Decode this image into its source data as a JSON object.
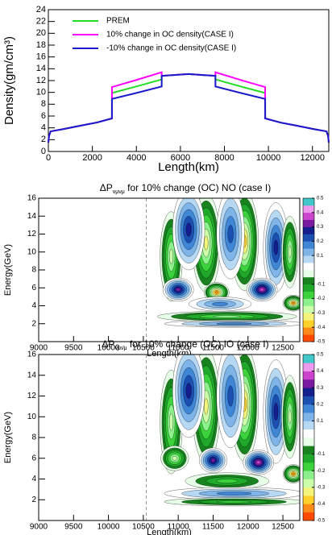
{
  "chart_data": [
    {
      "type": "line",
      "xlabel": "Length(km)",
      "ylabel": "Density(gm/cm³)",
      "x": [
        0,
        30,
        100,
        700,
        1500,
        2200,
        2890,
        2891,
        4000,
        5150,
        5151,
        6371,
        7591,
        7592,
        8742,
        9851,
        9852,
        10542,
        11242,
        12042,
        12642,
        12712,
        12742
      ],
      "series": [
        {
          "name": "PREM",
          "color": "#22dd22",
          "values": [
            1.5,
            2.6,
            3.4,
            3.8,
            4.4,
            4.9,
            5.6,
            9.9,
            11.0,
            12.2,
            12.8,
            13.1,
            12.8,
            12.2,
            11.0,
            9.9,
            5.6,
            4.9,
            4.4,
            3.8,
            3.4,
            2.6,
            1.5
          ]
        },
        {
          "name": "10% change in OC density(CASE I)",
          "color": "#ff00ff",
          "values": [
            1.5,
            2.6,
            3.4,
            3.8,
            4.4,
            4.9,
            5.6,
            10.9,
            12.1,
            13.4,
            12.8,
            13.1,
            12.8,
            13.4,
            12.1,
            10.9,
            5.6,
            4.9,
            4.4,
            3.8,
            3.4,
            2.6,
            1.5
          ]
        },
        {
          "name": "-10% change in OC density(CASE I)",
          "color": "#1a1acc",
          "values": [
            1.5,
            2.6,
            3.4,
            3.8,
            4.4,
            4.9,
            5.6,
            8.9,
            9.9,
            11.0,
            12.8,
            13.1,
            12.8,
            11.0,
            9.9,
            8.9,
            5.6,
            4.9,
            4.4,
            3.8,
            3.4,
            2.6,
            1.5
          ]
        }
      ],
      "xlim": [
        0,
        12742
      ],
      "xticks": [
        0,
        2000,
        4000,
        6000,
        8000,
        10000,
        12000
      ],
      "ylim": [
        0,
        24
      ],
      "yticks": [
        0,
        2,
        4,
        6,
        8,
        10,
        12,
        14,
        16,
        18,
        20,
        22,
        24
      ],
      "legend": "upper left"
    },
    {
      "type": "contour",
      "title": "ΔP",
      "title_subscript": "νμνμ",
      "title_suffix": " for 10% change (OC) NO (case I)",
      "xlabel": "Length(km)",
      "ylabel": "Energy(GeV)",
      "xlim": [
        9000,
        12742
      ],
      "xticks": [
        9000,
        9500,
        10000,
        10500,
        11000,
        11500,
        12000,
        12500
      ],
      "ylim": [
        0,
        16
      ],
      "yticks": [
        2,
        4,
        6,
        8,
        10,
        12,
        14,
        16
      ],
      "zlim": [
        -0.5,
        0.5
      ],
      "zticks": [
        0.5,
        0.4,
        0.3,
        0.2,
        0.1,
        -0.1,
        -0.2,
        -0.3,
        -0.4,
        -0.5
      ],
      "vline": 10542,
      "palette": [
        "#ff4a00",
        "#ff8a1a",
        "#ffd02a",
        "#f4f47a",
        "#ccffaa",
        "#8cf08c",
        "#3cd23c",
        "#1fa82a",
        "#17821e",
        "#e6ffe6",
        "#ffffff",
        "#b6d8f2",
        "#7eb4e8",
        "#3f86d6",
        "#1c4fb2",
        "#141e8c",
        "#7a1aa0",
        "#cc44cc",
        "#ee99ee",
        "#40c8c8"
      ],
      "blobs": [
        {
          "x": 10900,
          "y": 9.5,
          "rx": 160,
          "ry": 5,
          "value": -0.3
        },
        {
          "x": 11400,
          "y": 11,
          "rx": 200,
          "ry": 5.5,
          "value": -0.35
        },
        {
          "x": 11950,
          "y": 11.2,
          "rx": 200,
          "ry": 5.5,
          "value": -0.4
        },
        {
          "x": 11150,
          "y": 12.5,
          "rx": 230,
          "ry": 4.5,
          "value": 0.3
        },
        {
          "x": 11750,
          "y": 12,
          "rx": 200,
          "ry": 5,
          "value": 0.25
        },
        {
          "x": 12400,
          "y": 10.5,
          "rx": 180,
          "ry": 5,
          "value": 0.3
        },
        {
          "x": 12600,
          "y": 10,
          "rx": 120,
          "ry": 4,
          "value": -0.3
        },
        {
          "x": 11000,
          "y": 5.8,
          "rx": 220,
          "ry": 1.3,
          "value": 0.35
        },
        {
          "x": 11550,
          "y": 5.5,
          "rx": 180,
          "ry": 1.1,
          "value": -0.45
        },
        {
          "x": 12200,
          "y": 5.8,
          "rx": 220,
          "ry": 1.3,
          "value": 0.4
        },
        {
          "x": 12650,
          "y": 4.3,
          "rx": 150,
          "ry": 0.9,
          "value": -0.45
        },
        {
          "x": 11600,
          "y": 4.2,
          "rx": 450,
          "ry": 0.8,
          "value": 0.2
        },
        {
          "x": 11700,
          "y": 2.8,
          "rx": 1000,
          "ry": 0.6,
          "value": -0.25
        },
        {
          "x": 11800,
          "y": 2,
          "rx": 1000,
          "ry": 0.4,
          "value": 0.2
        }
      ]
    },
    {
      "type": "contour",
      "title": "ΔP",
      "title_subscript": "ν̄μν̄μ",
      "title_suffix": " for 10% change (OC) IO (case I)",
      "xlabel": "Length(km)",
      "ylabel": "Energy(GeV)",
      "xlim": [
        9000,
        12742
      ],
      "xticks": [
        9000,
        9500,
        10000,
        10500,
        11000,
        11500,
        12000,
        12500
      ],
      "ylim": [
        0,
        16
      ],
      "yticks": [
        2,
        4,
        6,
        8,
        10,
        12,
        14,
        16
      ],
      "zlim": [
        -0.5,
        0.5
      ],
      "zticks": [
        0.5,
        0.4,
        0.3,
        0.2,
        0.1,
        -0.1,
        -0.2,
        -0.3,
        -0.4,
        -0.5
      ],
      "vline": 10542,
      "palette": [
        "#ff4a00",
        "#ff8a1a",
        "#ffd02a",
        "#f4f47a",
        "#ccffaa",
        "#8cf08c",
        "#3cd23c",
        "#1fa82a",
        "#17821e",
        "#e6ffe6",
        "#ffffff",
        "#b6d8f2",
        "#7eb4e8",
        "#3f86d6",
        "#1c4fb2",
        "#141e8c",
        "#7a1aa0",
        "#cc44cc",
        "#ee99ee",
        "#40c8c8"
      ],
      "blobs": [
        {
          "x": 10900,
          "y": 9.5,
          "rx": 160,
          "ry": 5,
          "value": -0.3
        },
        {
          "x": 11400,
          "y": 11,
          "rx": 200,
          "ry": 5.5,
          "value": -0.35
        },
        {
          "x": 11950,
          "y": 11.2,
          "rx": 200,
          "ry": 5.5,
          "value": -0.4
        },
        {
          "x": 11150,
          "y": 12.5,
          "rx": 230,
          "ry": 4.5,
          "value": 0.3
        },
        {
          "x": 11750,
          "y": 12,
          "rx": 200,
          "ry": 5,
          "value": 0.25
        },
        {
          "x": 12400,
          "y": 10.5,
          "rx": 180,
          "ry": 5,
          "value": 0.3
        },
        {
          "x": 12600,
          "y": 10,
          "rx": 120,
          "ry": 4,
          "value": -0.3
        },
        {
          "x": 10950,
          "y": 6,
          "rx": 200,
          "ry": 1.2,
          "value": -0.3
        },
        {
          "x": 11500,
          "y": 5.8,
          "rx": 200,
          "ry": 1.2,
          "value": 0.35
        },
        {
          "x": 12150,
          "y": 5.6,
          "rx": 220,
          "ry": 1.2,
          "value": 0.4
        },
        {
          "x": 12650,
          "y": 4.5,
          "rx": 150,
          "ry": 0.9,
          "value": -0.45
        },
        {
          "x": 11700,
          "y": 3.8,
          "rx": 600,
          "ry": 0.8,
          "value": -0.2
        },
        {
          "x": 11800,
          "y": 2.6,
          "rx": 1000,
          "ry": 0.6,
          "value": 0.2
        },
        {
          "x": 11800,
          "y": 1.8,
          "rx": 1000,
          "ry": 0.4,
          "value": -0.2
        }
      ]
    }
  ]
}
